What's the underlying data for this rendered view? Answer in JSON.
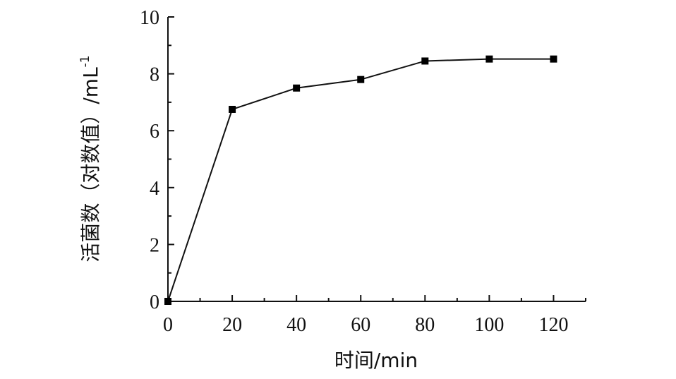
{
  "chart_data": {
    "type": "line",
    "title": "",
    "xlabel": "时间/min",
    "ylabel": "活菌数（对数值）/mL",
    "ylabel_sup": "-1",
    "xlim": [
      0,
      130
    ],
    "ylim": [
      0,
      10
    ],
    "xticks": [
      0,
      20,
      40,
      60,
      80,
      100,
      120
    ],
    "yticks": [
      0,
      2,
      4,
      6,
      8,
      10
    ],
    "grid": false,
    "legend": "none",
    "series": [
      {
        "x": [
          0,
          20,
          40,
          60,
          80,
          100,
          120
        ],
        "y": [
          0,
          6.75,
          7.5,
          7.8,
          8.45,
          8.52,
          8.52
        ],
        "marker": "square",
        "color": "#000000"
      }
    ]
  }
}
